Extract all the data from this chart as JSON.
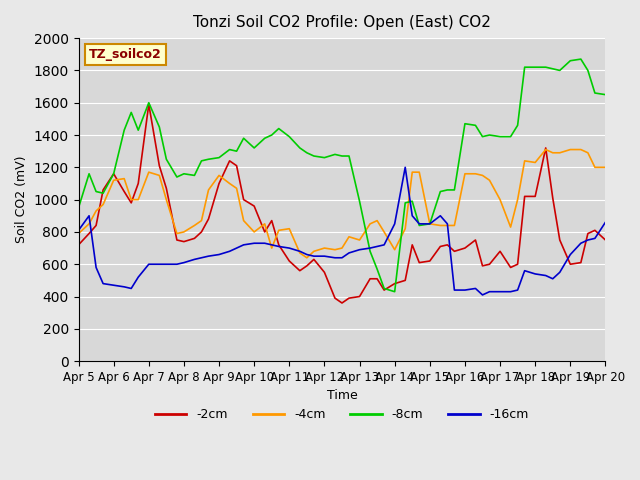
{
  "title": "Tonzi Soil CO2 Profile: Open (East) CO2",
  "xlabel": "Time",
  "ylabel": "Soil CO2 (mV)",
  "ylim": [
    0,
    2000
  ],
  "yticks": [
    0,
    200,
    400,
    600,
    800,
    1000,
    1200,
    1400,
    1600,
    1800,
    2000
  ],
  "bg_color": "#e8e8e8",
  "plot_bg_color": "#d8d8d8",
  "legend_label": "TZ_soilco2",
  "series": {
    "-2cm": {
      "color": "#cc0000",
      "x": [
        0,
        0.3,
        0.5,
        0.7,
        1.0,
        1.3,
        1.5,
        1.7,
        2.0,
        2.3,
        2.5,
        2.8,
        3.0,
        3.3,
        3.5,
        3.7,
        4.0,
        4.3,
        4.5,
        4.7,
        5.0,
        5.3,
        5.5,
        5.7,
        6.0,
        6.3,
        6.5,
        6.7,
        7.0,
        7.3,
        7.5,
        7.7,
        8.0,
        8.3,
        8.5,
        8.7,
        9.0,
        9.3,
        9.5,
        9.7,
        10.0,
        10.3,
        10.5,
        10.7,
        11.0,
        11.3,
        11.5,
        11.7,
        12.0,
        12.3,
        12.5,
        12.7,
        13.0,
        13.3,
        13.5,
        13.7,
        14.0,
        14.3,
        14.5,
        14.7,
        15.0
      ],
      "y": [
        720,
        790,
        840,
        1060,
        1160,
        1050,
        980,
        1100,
        1590,
        1210,
        1070,
        750,
        740,
        760,
        800,
        880,
        1100,
        1240,
        1210,
        1000,
        960,
        800,
        870,
        720,
        620,
        560,
        590,
        630,
        550,
        390,
        360,
        390,
        400,
        510,
        510,
        440,
        480,
        500,
        720,
        610,
        620,
        710,
        720,
        680,
        700,
        750,
        590,
        600,
        680,
        580,
        600,
        1020,
        1020,
        1320,
        1010,
        750,
        600,
        610,
        790,
        810,
        750
      ]
    },
    "-4cm": {
      "color": "#ff9900",
      "x": [
        0,
        0.3,
        0.5,
        0.7,
        1.0,
        1.3,
        1.5,
        1.7,
        2.0,
        2.3,
        2.5,
        2.8,
        3.0,
        3.3,
        3.5,
        3.7,
        4.0,
        4.3,
        4.5,
        4.7,
        5.0,
        5.3,
        5.5,
        5.7,
        6.0,
        6.3,
        6.5,
        6.7,
        7.0,
        7.3,
        7.5,
        7.7,
        8.0,
        8.3,
        8.5,
        8.7,
        9.0,
        9.3,
        9.5,
        9.7,
        10.0,
        10.3,
        10.5,
        10.7,
        11.0,
        11.3,
        11.5,
        11.7,
        12.0,
        12.3,
        12.5,
        12.7,
        13.0,
        13.3,
        13.5,
        13.7,
        14.0,
        14.3,
        14.5,
        14.7,
        15.0
      ],
      "y": [
        790,
        850,
        930,
        970,
        1120,
        1130,
        1000,
        1000,
        1170,
        1150,
        1000,
        790,
        800,
        840,
        870,
        1060,
        1150,
        1100,
        1070,
        870,
        800,
        850,
        700,
        810,
        820,
        670,
        640,
        680,
        700,
        690,
        700,
        770,
        750,
        850,
        870,
        800,
        690,
        820,
        1170,
        1170,
        850,
        840,
        840,
        840,
        1160,
        1160,
        1150,
        1120,
        1000,
        830,
        1000,
        1240,
        1230,
        1310,
        1290,
        1290,
        1310,
        1310,
        1290,
        1200,
        1200
      ]
    },
    "-8cm": {
      "color": "#00cc00",
      "x": [
        0,
        0.3,
        0.5,
        0.7,
        1.0,
        1.3,
        1.5,
        1.7,
        2.0,
        2.3,
        2.5,
        2.8,
        3.0,
        3.3,
        3.5,
        3.7,
        4.0,
        4.3,
        4.5,
        4.7,
        5.0,
        5.3,
        5.5,
        5.7,
        6.0,
        6.3,
        6.5,
        6.7,
        7.0,
        7.3,
        7.5,
        7.7,
        8.0,
        8.3,
        8.5,
        8.7,
        9.0,
        9.3,
        9.5,
        9.7,
        10.0,
        10.3,
        10.5,
        10.7,
        11.0,
        11.3,
        11.5,
        11.7,
        12.0,
        12.3,
        12.5,
        12.7,
        13.0,
        13.3,
        13.5,
        13.7,
        14.0,
        14.3,
        14.5,
        14.7,
        15.0
      ],
      "y": [
        950,
        1160,
        1050,
        1040,
        1160,
        1430,
        1540,
        1430,
        1600,
        1450,
        1250,
        1140,
        1160,
        1150,
        1240,
        1250,
        1260,
        1310,
        1300,
        1380,
        1320,
        1380,
        1400,
        1440,
        1390,
        1320,
        1290,
        1270,
        1260,
        1280,
        1270,
        1270,
        990,
        680,
        570,
        450,
        430,
        980,
        990,
        840,
        850,
        1050,
        1060,
        1060,
        1470,
        1460,
        1390,
        1400,
        1390,
        1390,
        1460,
        1820,
        1820,
        1820,
        1810,
        1800,
        1860,
        1870,
        1800,
        1660,
        1650
      ]
    },
    "-16cm": {
      "color": "#0000cc",
      "x": [
        0,
        0.3,
        0.5,
        0.7,
        1.0,
        1.3,
        1.5,
        1.7,
        2.0,
        2.3,
        2.5,
        2.8,
        3.0,
        3.3,
        3.5,
        3.7,
        4.0,
        4.3,
        4.5,
        4.7,
        5.0,
        5.3,
        5.5,
        5.7,
        6.0,
        6.3,
        6.5,
        6.7,
        7.0,
        7.3,
        7.5,
        7.7,
        8.0,
        8.3,
        8.5,
        8.7,
        9.0,
        9.3,
        9.5,
        9.7,
        10.0,
        10.3,
        10.5,
        10.7,
        11.0,
        11.3,
        11.5,
        11.7,
        12.0,
        12.3,
        12.5,
        12.7,
        13.0,
        13.3,
        13.5,
        13.7,
        14.0,
        14.3,
        14.5,
        14.7,
        15.0
      ],
      "y": [
        810,
        900,
        580,
        480,
        470,
        460,
        450,
        520,
        600,
        600,
        600,
        600,
        610,
        630,
        640,
        650,
        660,
        680,
        700,
        720,
        730,
        730,
        720,
        710,
        700,
        680,
        660,
        650,
        650,
        640,
        640,
        670,
        690,
        700,
        710,
        720,
        850,
        1200,
        900,
        850,
        850,
        900,
        850,
        440,
        440,
        450,
        410,
        430,
        430,
        430,
        440,
        560,
        540,
        530,
        510,
        550,
        660,
        730,
        750,
        760,
        860
      ]
    }
  },
  "xtick_positions": [
    0,
    1,
    2,
    3,
    4,
    5,
    6,
    7,
    8,
    9,
    10,
    11,
    12,
    13,
    14,
    15
  ],
  "xtick_labels": [
    "Apr 5",
    "Apr 6",
    "Apr 7",
    "Apr 8",
    "Apr 9",
    "Apr 10",
    "Apr 11",
    "Apr 12",
    "Apr 13",
    "Apr 14",
    "Apr 15",
    "Apr 16",
    "Apr 17",
    "Apr 18",
    "Apr 19",
    "Apr 20"
  ],
  "legend_entries": [
    {
      "label": "-2cm",
      "color": "#cc0000"
    },
    {
      "label": "-4cm",
      "color": "#ff9900"
    },
    {
      "label": "-8cm",
      "color": "#00cc00"
    },
    {
      "label": "-16cm",
      "color": "#0000cc"
    }
  ],
  "box_label_color": "#8b0000",
  "box_fill_color": "#ffffcc",
  "box_edge_color": "#cc8800"
}
